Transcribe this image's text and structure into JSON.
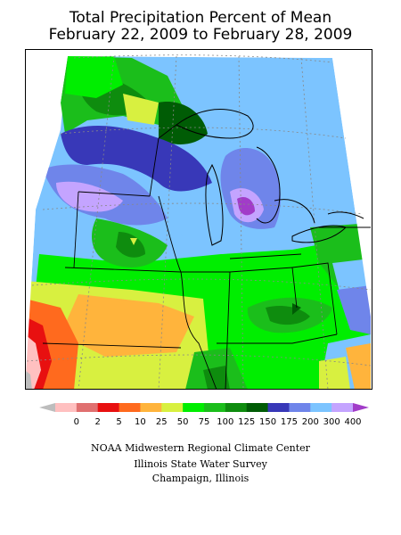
{
  "title_line1": "Total Precipitation Percent of Mean",
  "title_line2": "February 22, 2009 to February 28, 2009",
  "legend": {
    "labels": [
      "0",
      "2",
      "5",
      "10",
      "25",
      "50",
      "75",
      "100",
      "125",
      "150",
      "175",
      "200",
      "300",
      "400"
    ],
    "colors": [
      "#bdbdbd",
      "#ffc0c0",
      "#e07070",
      "#e81010",
      "#ff6a1e",
      "#ffb43c",
      "#d8f040",
      "#00ee00",
      "#1bbe1b",
      "#0e8c0e",
      "#005c05",
      "#3838b8",
      "#6f85ea",
      "#7cc4ff",
      "#c4a4ff",
      "#a13cc8"
    ]
  },
  "credits": {
    "line1": "NOAA Midwestern Regional Climate Center",
    "line2": "Illinois State Water Survey",
    "line3": "Champaign, Illinois"
  },
  "colors": {
    "background": "#ffffff",
    "map_border": "#000000",
    "boundaries": "#000000",
    "graticule": "#888888"
  }
}
